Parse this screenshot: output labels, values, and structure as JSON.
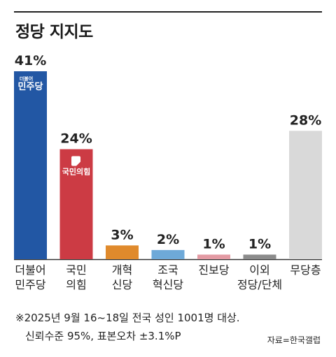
{
  "title": "정당 지지도",
  "chart_data": {
    "type": "bar",
    "categories": [
      [
        "더불어",
        "민주당"
      ],
      [
        "국민",
        "의힘"
      ],
      [
        "개혁",
        "신당"
      ],
      [
        "조국",
        "혁신당"
      ],
      [
        "진보당"
      ],
      [
        "이외",
        "정당/단체"
      ],
      [
        "무당층"
      ]
    ],
    "values": [
      41,
      24,
      3,
      2,
      1,
      1,
      28
    ],
    "value_labels": [
      "41%",
      "24%",
      "3%",
      "2%",
      "1%",
      "1%",
      "28%"
    ],
    "colors": [
      "#2257a4",
      "#cc3b44",
      "#e08a2c",
      "#6ea9d8",
      "#e39aa3",
      "#8b8b8b",
      "#d9d9d9"
    ],
    "ylim": [
      0,
      41
    ],
    "logos": {
      "0": {
        "small": "더불어",
        "main": "민주당"
      },
      "1": {
        "main": "국민의힘"
      }
    }
  },
  "footnote": {
    "line1": "※2025년 9월 16~18일 전국 성인 1001명 대상.",
    "line2": "신뢰수준 95%, 표본오차 ±3.1%P"
  },
  "source": "자료=한국갤럽"
}
